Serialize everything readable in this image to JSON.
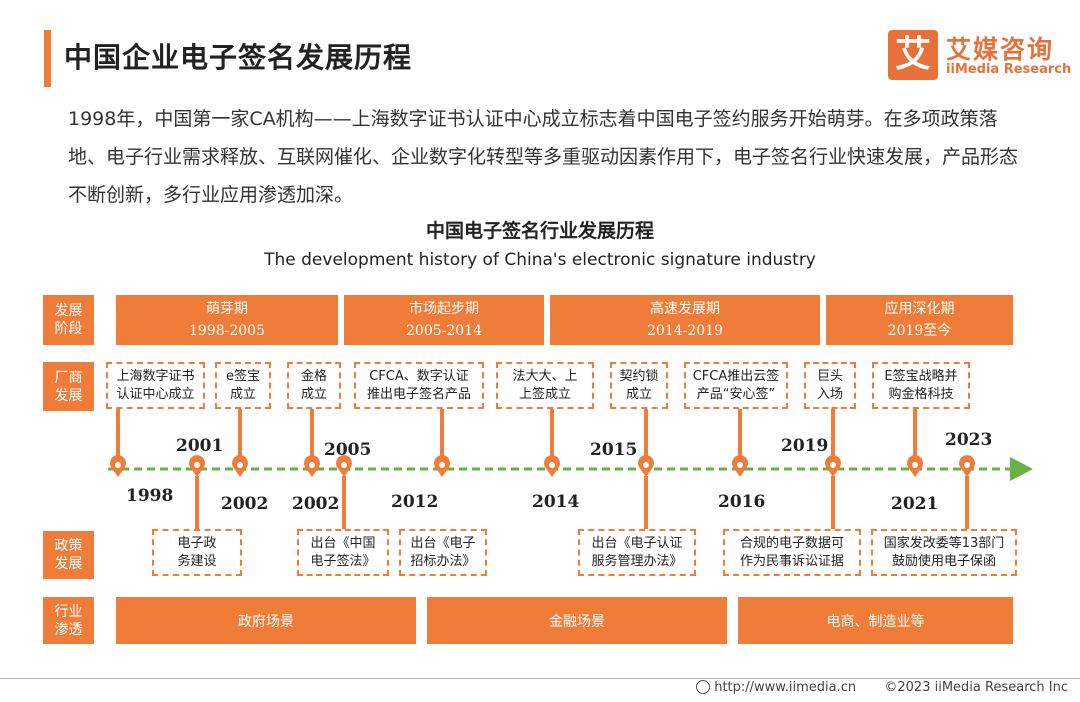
{
  "header": {
    "title": "中国企业电子签名发展历程"
  },
  "logo": {
    "mark": "艾",
    "name_cn": "艾媒咨询",
    "name_en": "iiMedia Research"
  },
  "intro": "1998年，中国第一家CA机构——上海数字证书认证中心成立标志着中国电子签约服务开始萌芽。在多项政策落地、电子行业需求释放、互联网催化、企业数字化转型等多重驱动因素作用下，电子签名行业快速发展，产品形态不断创新，多行业应用渗透加深。",
  "diagram": {
    "title_cn": "中国电子签名行业发展历程",
    "title_en": "The development history of China's electronic signature industry",
    "row_labels": {
      "stage": "发展\n阶段",
      "vendor": "厂商\n发展",
      "policy": "政策\n发展",
      "industry": "行业\n渗透"
    },
    "phases": [
      {
        "name": "萌芽期",
        "years": "1998-2005"
      },
      {
        "name": "市场起步期",
        "years": "2005-2014"
      },
      {
        "name": "高速发展期",
        "years": "2014-2019"
      },
      {
        "name": "应用深化期",
        "years": "2019至今"
      }
    ],
    "vendor_events": [
      "上海数字证书\n认证中心成立",
      "e签宝\n成立",
      "金格\n成立",
      "CFCA、数字认证\n推出电子签名产品",
      "法大大、上\n上签成立",
      "契约锁\n成立",
      "CFCA推出云签\n产品“安心签”",
      "巨头\n入场",
      "E签宝战略并\n购金格科技"
    ],
    "policy_events": [
      "电子政\n务建设",
      "出台《中国\n电子签法》",
      "出台《电子\n招标办法》",
      "出台《电子认证\n服务管理办法》",
      "合规的电子数据可\n作为民事诉讼证据",
      "国家发改委等13部门\n鼓励使用电子保函"
    ],
    "years": [
      "1998",
      "2001",
      "2002",
      "2002",
      "2005",
      "2012",
      "2014",
      "2015",
      "2016",
      "2019",
      "2021",
      "2023"
    ],
    "scenes": [
      "政府场景",
      "金融场景",
      "电商、制造业等"
    ]
  },
  "footer": {
    "url": "http://www.iimedia.cn",
    "copyright": "©2023  iiMedia Research  Inc"
  },
  "colors": {
    "accent": "#ef7d39",
    "timeline": "#66b245"
  }
}
